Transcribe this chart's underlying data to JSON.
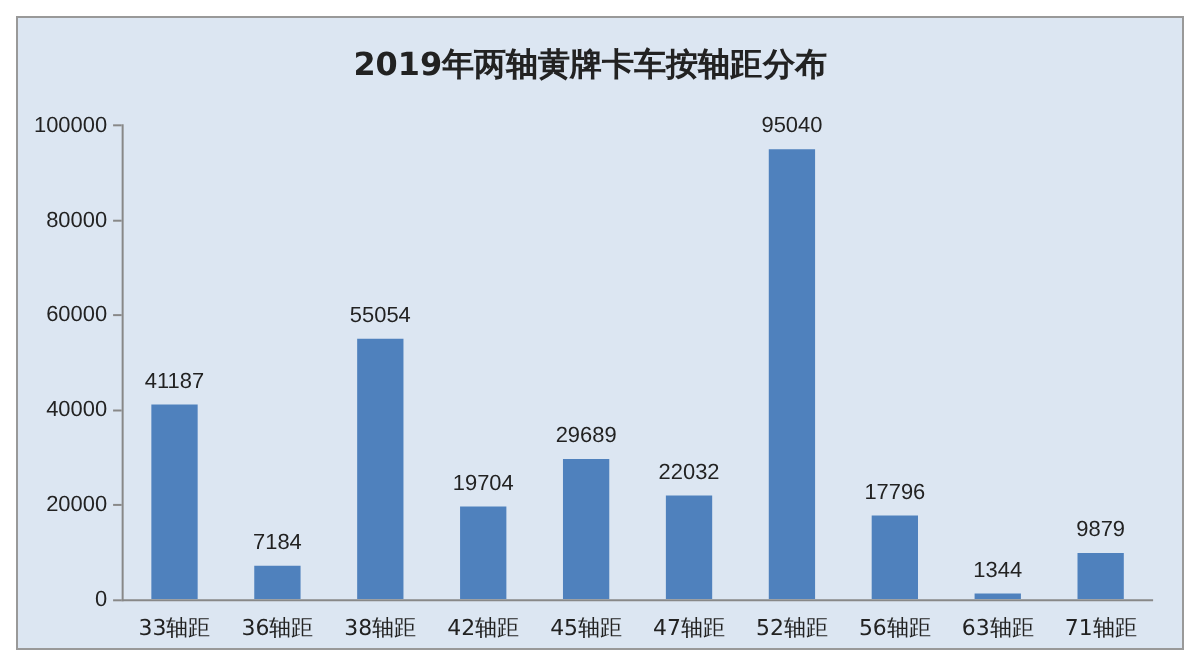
{
  "chart_data": {
    "type": "bar",
    "title": "2019年两轴黄牌卡车按轴距分布",
    "categories": [
      "33轴距",
      "36轴距",
      "38轴距",
      "42轴距",
      "45轴距",
      "47轴距",
      "52轴距",
      "56轴距",
      "63轴距",
      "71轴距"
    ],
    "values": [
      41187,
      7184,
      55054,
      19704,
      29689,
      22032,
      95040,
      17796,
      1344,
      9879
    ],
    "color": "#4f81bd",
    "ylim": [
      0,
      100000
    ],
    "yticks": [
      0,
      20000,
      40000,
      60000,
      80000,
      100000
    ],
    "grid": false,
    "data_labels": true
  }
}
